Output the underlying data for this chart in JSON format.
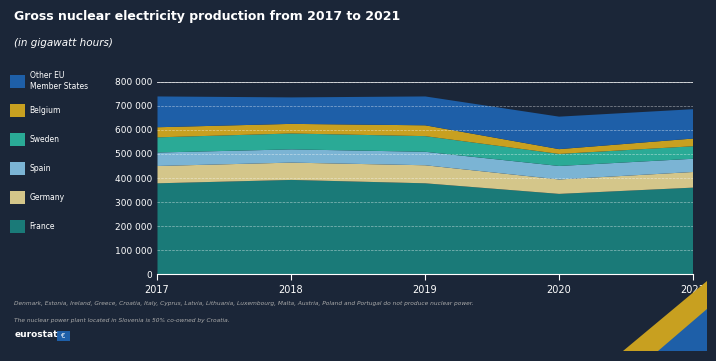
{
  "title": "Gross nuclear electricity production from 2017 to 2021",
  "subtitle": "(in gigawatt hours)",
  "years": [
    2017,
    2018,
    2019,
    2020,
    2021
  ],
  "series": {
    "France": [
      379000,
      393000,
      379000,
      335000,
      361000
    ],
    "Germany": [
      72000,
      72000,
      75000,
      60000,
      65000
    ],
    "Spain": [
      56000,
      55000,
      56000,
      56000,
      55000
    ],
    "Sweden": [
      63000,
      66000,
      65000,
      50000,
      52000
    ],
    "Belgium": [
      42000,
      40000,
      45000,
      20000,
      32000
    ],
    "Other EU Member States": [
      128000,
      110000,
      120000,
      135000,
      122000
    ]
  },
  "colors": {
    "France": "#1a7a78",
    "Germany": "#d4c68a",
    "Spain": "#7bb4d4",
    "Sweden": "#2aaa96",
    "Belgium": "#c8a020",
    "Other EU Member States": "#1e5fa8"
  },
  "background_color": "#1b2638",
  "text_color": "#ffffff",
  "grid_color": "#ffffff",
  "ylim": [
    0,
    800000
  ],
  "yticks": [
    0,
    100000,
    200000,
    300000,
    400000,
    500000,
    600000,
    700000,
    800000
  ],
  "ytick_labels": [
    "0",
    "100 000",
    "200 000",
    "300 000",
    "400 000",
    "500 000",
    "600 000",
    "700 000",
    "800 000"
  ],
  "footnote_line1": "Denmark, Estonia, Ireland, Greece, Croatia, Italy, Cyprus, Latvia, Lithuania, Luxembourg, Malta, Austria, Poland and Portugal do not produce nuclear power.",
  "footnote_line2": "The nuclear power plant located in Slovenia is 50% co-owned by Croatia."
}
